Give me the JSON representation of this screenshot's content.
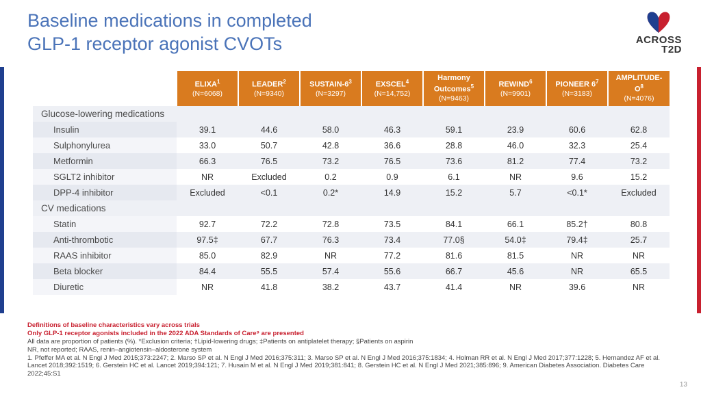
{
  "title_line1": "Baseline medications in completed",
  "title_line2": "GLP-1 receptor agonist CVOTs",
  "logo_line1": "ACROSS",
  "logo_line2": "T2D",
  "page_number": "13",
  "trials": [
    {
      "name": "ELIXA",
      "sup": "1",
      "n": "(N=6068)"
    },
    {
      "name": "LEADER",
      "sup": "2",
      "n": "(N=9340)"
    },
    {
      "name": "SUSTAIN-6",
      "sup": "3",
      "n": "(N=3297)"
    },
    {
      "name": "EXSCEL",
      "sup": "4",
      "n": "(N=14,752)"
    },
    {
      "name": "Harmony Outcomes",
      "sup": "5",
      "n": "(N=9463)"
    },
    {
      "name": "REWIND",
      "sup": "6",
      "n": "(N=9901)"
    },
    {
      "name": "PIONEER 6",
      "sup": "7",
      "n": "(N=3183)"
    },
    {
      "name": "AMPLITUDE-O",
      "sup": "8",
      "n": "(N=4076)"
    }
  ],
  "sections": [
    {
      "label": "Glucose-lowering medications",
      "rows": [
        {
          "label": "Insulin",
          "vals": [
            "39.1",
            "44.6",
            "58.0",
            "46.3",
            "59.1",
            "23.9",
            "60.6",
            "62.8"
          ]
        },
        {
          "label": "Sulphonylurea",
          "vals": [
            "33.0",
            "50.7",
            "42.8",
            "36.6",
            "28.8",
            "46.0",
            "32.3",
            "25.4"
          ]
        },
        {
          "label": "Metformin",
          "vals": [
            "66.3",
            "76.5",
            "73.2",
            "76.5",
            "73.6",
            "81.2",
            "77.4",
            "73.2"
          ]
        },
        {
          "label": "SGLT2 inhibitor",
          "vals": [
            "NR",
            "Excluded",
            "0.2",
            "0.9",
            "6.1",
            "NR",
            "9.6",
            "15.2"
          ]
        },
        {
          "label": "DPP-4 inhibitor",
          "vals": [
            "Excluded",
            "<0.1",
            "0.2*",
            "14.9",
            "15.2",
            "5.7",
            "<0.1*",
            "Excluded"
          ]
        }
      ]
    },
    {
      "label": "CV medications",
      "rows": [
        {
          "label": "Statin",
          "vals": [
            "92.7",
            "72.2",
            "72.8",
            "73.5",
            "84.1",
            "66.1",
            "85.2†",
            "80.8"
          ]
        },
        {
          "label": "Anti-thrombotic",
          "vals": [
            "97.5‡",
            "67.7",
            "76.3",
            "73.4",
            "77.0§",
            "54.0‡",
            "79.4‡",
            "25.7"
          ]
        },
        {
          "label": "RAAS inhibitor",
          "vals": [
            "85.0",
            "82.9",
            "NR",
            "77.2",
            "81.6",
            "81.5",
            "NR",
            "NR"
          ]
        },
        {
          "label": "Beta blocker",
          "vals": [
            "84.4",
            "55.5",
            "57.4",
            "55.6",
            "66.7",
            "45.6",
            "NR",
            "65.5"
          ]
        },
        {
          "label": "Diuretic",
          "vals": [
            "NR",
            "41.8",
            "38.2",
            "43.7",
            "41.4",
            "NR",
            "39.6",
            "NR"
          ]
        }
      ]
    }
  ],
  "footnotes": {
    "red1": "Definitions of baseline characteristics vary across trials",
    "red2": "Only GLP-1 receptor agonists included in the 2022 ADA Standards of Care⁹ are presented",
    "line3": "All data are proportion of patients (%). *Exclusion criteria; †Lipid-lowering drugs; ‡Patients on antiplatelet therapy; §Patients on aspirin",
    "line4": "NR, not reported; RAAS, renin–angiotensin–aldosterone system",
    "refs": "1. Pfeffer MA et al. N Engl J Med 2015;373:2247; 2. Marso SP et al. N Engl J Med 2016;375:311; 3. Marso SP et al. N Engl J Med 2016;375:1834; 4. Holman RR et al. N Engl J Med 2017;377:1228; 5. Hernandez AF et al. Lancet 2018;392:1519; 6. Gerstein HC et al. Lancet 2019;394:121; 7. Husain M et al. N Engl J Med 2019;381:841; 8. Gerstein HC et al. N Engl J Med 2021;385:896; 9. American Diabetes Association. Diabetes Care 2022;45:S1"
  },
  "colors": {
    "header_bg": "#d97b1f",
    "title_color": "#4a73b8",
    "stripe_bg": "#eef0f5",
    "label_stripe_bg": "#e6e9f0",
    "red": "#c8202f",
    "blue_bar": "#1f3f8f"
  }
}
